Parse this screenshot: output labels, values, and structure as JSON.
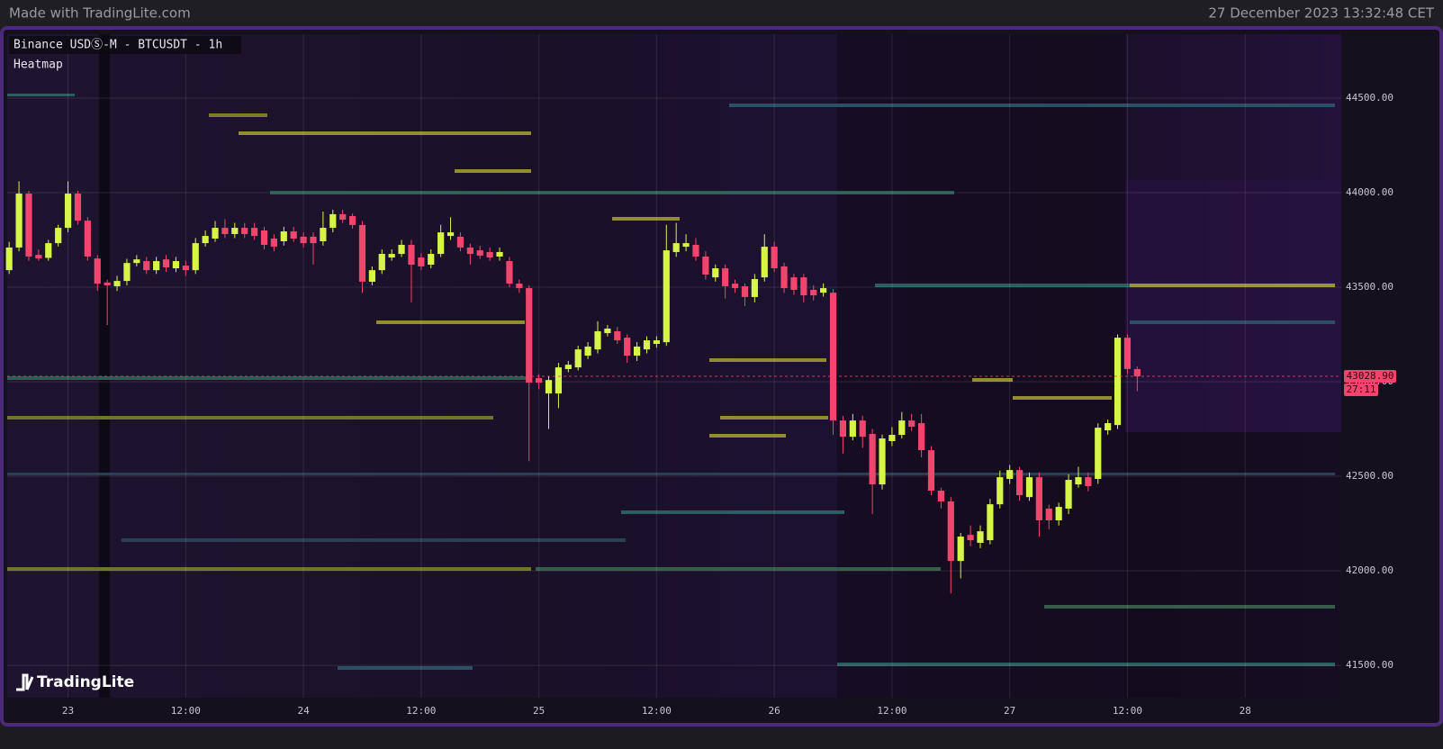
{
  "header": {
    "left": "Made with TradingLite.com",
    "right": "27 December 2023 13:32:48 CET"
  },
  "chart_data": {
    "type": "candlestick",
    "title": "Binance USDⓈ-M - BTCUSDT - 1h",
    "subtitle": "Heatmap",
    "brand": "TradingLite",
    "up_color": "#d6f547",
    "down_color": "#f2456d",
    "grid": true,
    "ylim": [
      41329,
      44838
    ],
    "yticks": [
      {
        "value": 41500,
        "label": "41500.00"
      },
      {
        "value": 42000,
        "label": "42000.00"
      },
      {
        "value": 42500,
        "label": "42500.00"
      },
      {
        "value": 43000,
        "label": "43000.00"
      },
      {
        "value": 43500,
        "label": "43500.00"
      },
      {
        "value": 44000,
        "label": "44000.00"
      },
      {
        "value": 44500,
        "label": "44500.00"
      }
    ],
    "xlim": [
      -0.2,
      135.8
    ],
    "xticks": [
      {
        "value": 6,
        "label": "23"
      },
      {
        "value": 18,
        "label": "12:00"
      },
      {
        "value": 30,
        "label": "24"
      },
      {
        "value": 42,
        "label": "12:00"
      },
      {
        "value": 54,
        "label": "25"
      },
      {
        "value": 66,
        "label": "12:00"
      },
      {
        "value": 78,
        "label": "26"
      },
      {
        "value": 90,
        "label": "12:00"
      },
      {
        "value": 102,
        "label": "27"
      },
      {
        "value": 114,
        "label": "12:00"
      },
      {
        "value": 126,
        "label": "28"
      }
    ],
    "last_price": {
      "value": 43028.9,
      "label": "43028.90"
    },
    "countdown": "27:11",
    "candles": [
      [
        43590,
        43740,
        43570,
        43710
      ],
      [
        43710,
        44060,
        43690,
        43995
      ],
      [
        43995,
        44010,
        43640,
        43662
      ],
      [
        43671,
        43700,
        43640,
        43652
      ],
      [
        43655,
        43750,
        43640,
        43733
      ],
      [
        43733,
        43830,
        43715,
        43814
      ],
      [
        43814,
        44060,
        43790,
        43995
      ],
      [
        43995,
        44010,
        43830,
        43852
      ],
      [
        43852,
        43870,
        43640,
        43662
      ],
      [
        43652,
        43670,
        43480,
        43519
      ],
      [
        43525,
        43540,
        43300,
        43510
      ],
      [
        43505,
        43560,
        43480,
        43533
      ],
      [
        43533,
        43650,
        43510,
        43628
      ],
      [
        43628,
        43670,
        43610,
        43647
      ],
      [
        43638,
        43660,
        43570,
        43590
      ],
      [
        43590,
        43660,
        43570,
        43638
      ],
      [
        43647,
        43670,
        43580,
        43605
      ],
      [
        43600,
        43660,
        43580,
        43638
      ],
      [
        43614,
        43640,
        43560,
        43590
      ],
      [
        43590,
        43760,
        43570,
        43733
      ],
      [
        43733,
        43800,
        43715,
        43771
      ],
      [
        43757,
        43850,
        43740,
        43814
      ],
      [
        43814,
        43860,
        43760,
        43781
      ],
      [
        43781,
        43840,
        43760,
        43814
      ],
      [
        43814,
        43840,
        43760,
        43781
      ],
      [
        43814,
        43840,
        43750,
        43771
      ],
      [
        43800,
        43820,
        43700,
        43724
      ],
      [
        43757,
        43780,
        43690,
        43714
      ],
      [
        43743,
        43820,
        43720,
        43795
      ],
      [
        43795,
        43820,
        43740,
        43757
      ],
      [
        43767,
        43790,
        43710,
        43733
      ],
      [
        43767,
        43790,
        43620,
        43733
      ],
      [
        43743,
        43900,
        43720,
        43814
      ],
      [
        43814,
        43910,
        43790,
        43886
      ],
      [
        43886,
        43910,
        43840,
        43857
      ],
      [
        43876,
        43890,
        43810,
        43829
      ],
      [
        43829,
        43850,
        43470,
        43529
      ],
      [
        43529,
        43610,
        43510,
        43590
      ],
      [
        43590,
        43700,
        43570,
        43676
      ],
      [
        43657,
        43700,
        43640,
        43676
      ],
      [
        43676,
        43750,
        43660,
        43724
      ],
      [
        43724,
        43750,
        43420,
        43619
      ],
      [
        43657,
        43680,
        43590,
        43610
      ],
      [
        43619,
        43700,
        43600,
        43676
      ],
      [
        43676,
        43830,
        43660,
        43790
      ],
      [
        43771,
        43870,
        43750,
        43790
      ],
      [
        43767,
        43790,
        43690,
        43710
      ],
      [
        43710,
        43730,
        43620,
        43676
      ],
      [
        43695,
        43720,
        43650,
        43667
      ],
      [
        43686,
        43710,
        43640,
        43657
      ],
      [
        43662,
        43710,
        43640,
        43686
      ],
      [
        43638,
        43660,
        43500,
        43519
      ],
      [
        43519,
        43540,
        43470,
        43495
      ],
      [
        43495,
        43510,
        42580,
        42995
      ],
      [
        43019,
        43040,
        42960,
        42995
      ],
      [
        42938,
        43030,
        42750,
        43009
      ],
      [
        42938,
        43100,
        42860,
        43076
      ],
      [
        43067,
        43110,
        43050,
        43090
      ],
      [
        43076,
        43190,
        43060,
        43171
      ],
      [
        43138,
        43210,
        43120,
        43186
      ],
      [
        43171,
        43320,
        43150,
        43267
      ],
      [
        43257,
        43300,
        43240,
        43281
      ],
      [
        43267,
        43290,
        43200,
        43219
      ],
      [
        43233,
        43250,
        43100,
        43138
      ],
      [
        43138,
        43210,
        43110,
        43186
      ],
      [
        43171,
        43240,
        43150,
        43219
      ],
      [
        43200,
        43240,
        43180,
        43219
      ],
      [
        43209,
        43830,
        43190,
        43695
      ],
      [
        43686,
        43840,
        43660,
        43733
      ],
      [
        43714,
        43780,
        43690,
        43733
      ],
      [
        43724,
        43760,
        43640,
        43662
      ],
      [
        43662,
        43690,
        43540,
        43567
      ],
      [
        43552,
        43620,
        43530,
        43600
      ],
      [
        43600,
        43620,
        43440,
        43505
      ],
      [
        43519,
        43540,
        43470,
        43495
      ],
      [
        43505,
        43520,
        43400,
        43448
      ],
      [
        43448,
        43570,
        43420,
        43543
      ],
      [
        43552,
        43780,
        43530,
        43714
      ],
      [
        43714,
        43740,
        43580,
        43600
      ],
      [
        43610,
        43630,
        43470,
        43495
      ],
      [
        43552,
        43570,
        43460,
        43486
      ],
      [
        43552,
        43570,
        43420,
        43457
      ],
      [
        43486,
        43510,
        43430,
        43457
      ],
      [
        43471,
        43520,
        43450,
        43495
      ],
      [
        43471,
        43490,
        42720,
        42795
      ],
      [
        42795,
        42820,
        42620,
        42709
      ],
      [
        42709,
        42830,
        42690,
        42795
      ],
      [
        42795,
        42820,
        42650,
        42709
      ],
      [
        42724,
        42750,
        42300,
        42457
      ],
      [
        42457,
        42720,
        42430,
        42700
      ],
      [
        42686,
        42760,
        42660,
        42719
      ],
      [
        42719,
        42840,
        42700,
        42795
      ],
      [
        42795,
        42830,
        42740,
        42762
      ],
      [
        42781,
        42830,
        42600,
        42638
      ],
      [
        42638,
        42660,
        42400,
        42424
      ],
      [
        42424,
        42440,
        42330,
        42367
      ],
      [
        42367,
        42390,
        41880,
        42052
      ],
      [
        42052,
        42200,
        41960,
        42181
      ],
      [
        42190,
        42240,
        42130,
        42162
      ],
      [
        42148,
        42240,
        42120,
        42209
      ],
      [
        42162,
        42380,
        42140,
        42352
      ],
      [
        42352,
        42530,
        42330,
        42495
      ],
      [
        42486,
        42560,
        42460,
        42533
      ],
      [
        42533,
        42550,
        42370,
        42400
      ],
      [
        42390,
        42520,
        42370,
        42495
      ],
      [
        42495,
        42520,
        42180,
        42267
      ],
      [
        42329,
        42350,
        42220,
        42267
      ],
      [
        42267,
        42360,
        42240,
        42338
      ],
      [
        42329,
        42510,
        42300,
        42481
      ],
      [
        42457,
        42550,
        42440,
        42495
      ],
      [
        42495,
        42520,
        42420,
        42448
      ],
      [
        42486,
        42780,
        42460,
        42757
      ],
      [
        42743,
        42800,
        42720,
        42781
      ],
      [
        42771,
        43250,
        42750,
        43233
      ],
      [
        43233,
        43250,
        43040,
        43067
      ],
      [
        43067,
        43080,
        42950,
        43028.9
      ]
    ]
  }
}
